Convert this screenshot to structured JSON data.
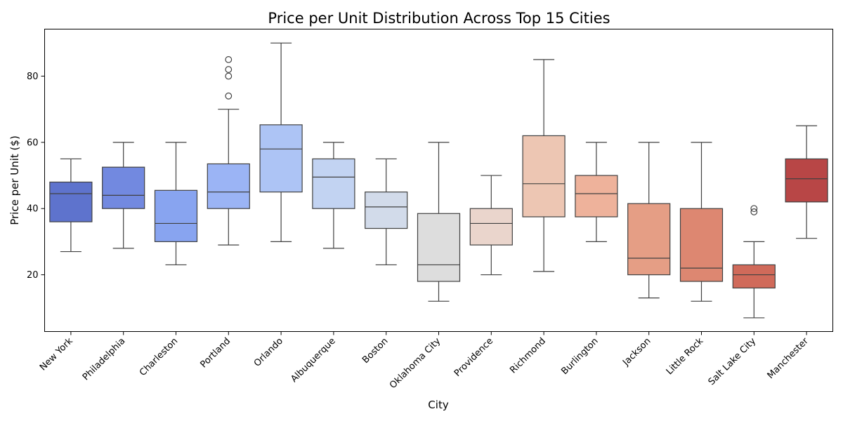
{
  "chart_data": {
    "type": "box",
    "title": "Price per Unit Distribution Across Top 15 Cities",
    "xlabel": "City",
    "ylabel": "Price per Unit ($)",
    "ylim": [
      2.85,
      94.2
    ],
    "yticks": [
      20,
      40,
      60,
      80
    ],
    "grid": false,
    "legend": "none",
    "categories": [
      "New York",
      "Philadelphia",
      "Charleston",
      "Portland",
      "Orlando",
      "Albuquerque",
      "Boston",
      "Oklahoma City",
      "Providence",
      "Richmond",
      "Burlington",
      "Jackson",
      "Little Rock",
      "Salt Lake City",
      "Manchester"
    ],
    "boxes": [
      {
        "category": "New York",
        "whisker_low": 27,
        "q1": 36,
        "median": 44.5,
        "q3": 48,
        "whisker_high": 55,
        "outliers": [],
        "color": "#5e73cd"
      },
      {
        "category": "Philadelphia",
        "whisker_low": 28,
        "q1": 40,
        "median": 44,
        "q3": 52.5,
        "whisker_high": 60,
        "outliers": [],
        "color": "#7289e0"
      },
      {
        "category": "Charleston",
        "whisker_low": 23,
        "q1": 30,
        "median": 35.5,
        "q3": 45.5,
        "whisker_high": 60,
        "outliers": [],
        "color": "#88a4f0"
      },
      {
        "category": "Portland",
        "whisker_low": 29,
        "q1": 40,
        "median": 45,
        "q3": 53.5,
        "whisker_high": 70,
        "outliers": [
          74,
          80,
          82,
          85
        ],
        "color": "#9bb4f5"
      },
      {
        "category": "Orlando",
        "whisker_low": 30,
        "q1": 45,
        "median": 58,
        "q3": 65.3,
        "whisker_high": 90,
        "outliers": [],
        "color": "#adc4f5"
      },
      {
        "category": "Albuquerque",
        "whisker_low": 28,
        "q1": 40,
        "median": 49.5,
        "q3": 55,
        "whisker_high": 60,
        "outliers": [],
        "color": "#c2d3f2"
      },
      {
        "category": "Boston",
        "whisker_low": 23,
        "q1": 34,
        "median": 40.5,
        "q3": 45,
        "whisker_high": 55,
        "outliers": [],
        "color": "#d2dbea"
      },
      {
        "category": "Oklahoma City",
        "whisker_low": 12,
        "q1": 18,
        "median": 23,
        "q3": 38.5,
        "whisker_high": 60,
        "outliers": [],
        "color": "#dddddd"
      },
      {
        "category": "Providence",
        "whisker_low": 20,
        "q1": 29,
        "median": 35.5,
        "q3": 40,
        "whisker_high": 50,
        "outliers": [],
        "color": "#ead5cc"
      },
      {
        "category": "Richmond",
        "whisker_low": 21,
        "q1": 37.5,
        "median": 47.5,
        "q3": 62,
        "whisker_high": 85,
        "outliers": [],
        "color": "#edc6b3"
      },
      {
        "category": "Burlington",
        "whisker_low": 30,
        "q1": 37.5,
        "median": 44.5,
        "q3": 50,
        "whisker_high": 60,
        "outliers": [],
        "color": "#eeb29b"
      },
      {
        "category": "Jackson",
        "whisker_low": 13,
        "q1": 20,
        "median": 25,
        "q3": 41.5,
        "whisker_high": 60,
        "outliers": [],
        "color": "#e59e85"
      },
      {
        "category": "Little Rock",
        "whisker_low": 12,
        "q1": 18,
        "median": 22,
        "q3": 40,
        "whisker_high": 60,
        "outliers": [],
        "color": "#dd8771"
      },
      {
        "category": "Salt Lake City",
        "whisker_low": 7,
        "q1": 16,
        "median": 20,
        "q3": 23,
        "whisker_high": 30,
        "outliers": [
          39,
          40
        ],
        "color": "#d06a5a"
      },
      {
        "category": "Manchester",
        "whisker_low": 31,
        "q1": 42,
        "median": 49,
        "q3": 55,
        "whisker_high": 65,
        "outliers": [],
        "color": "#b84646"
      }
    ]
  }
}
